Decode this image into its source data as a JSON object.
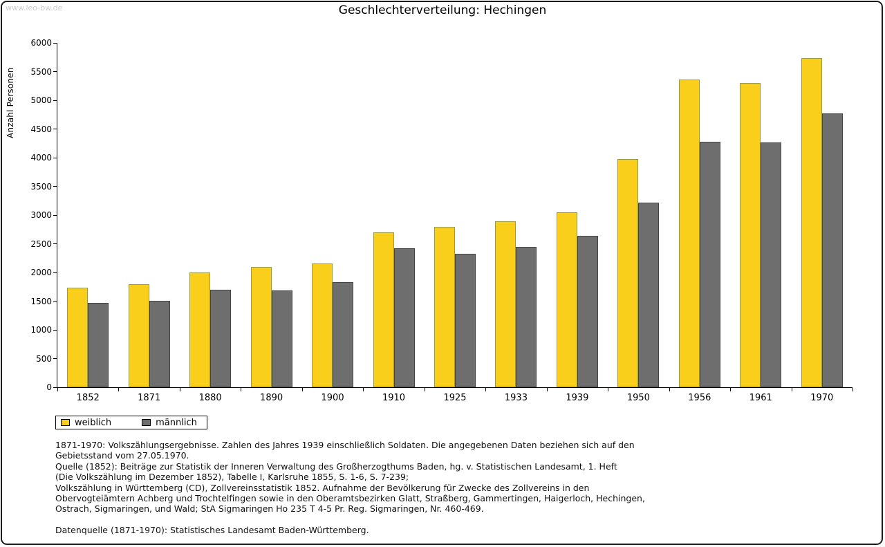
{
  "page": {
    "watermark": "www.leo-bw.de"
  },
  "chart_data": {
    "type": "bar",
    "title": "Geschlechterverteilung: Hechingen",
    "xlabel": "",
    "ylabel": "Anzahl Personen",
    "ylim": [
      0,
      6000
    ],
    "ytick_step": 500,
    "grid": false,
    "legend_position": "bottom-left",
    "categories": [
      "1852",
      "1871",
      "1880",
      "1890",
      "1900",
      "1910",
      "1925",
      "1933",
      "1939",
      "1950",
      "1956",
      "1961",
      "1970"
    ],
    "series": [
      {
        "name": "weiblich",
        "color": "#F9CF1B",
        "border": "#9a9a42",
        "values": [
          1730,
          1800,
          2000,
          2100,
          2160,
          2700,
          2800,
          2890,
          3050,
          3970,
          5360,
          5300,
          5740
        ]
      },
      {
        "name": "männlich",
        "color": "#6E6E6E",
        "border": "#454545",
        "values": [
          1470,
          1500,
          1700,
          1690,
          1830,
          2420,
          2320,
          2450,
          2640,
          3220,
          4280,
          4270,
          4770
        ]
      }
    ]
  },
  "notes": {
    "lines": [
      "1871-1970: Volkszählungsergebnisse. Zahlen des Jahres 1939 einschließlich Soldaten. Die angegebenen Daten beziehen sich auf den",
      "Gebietsstand vom 27.05.1970.",
      "Quelle (1852): Beiträge zur Statistik der Inneren Verwaltung des Großherzogthums Baden, hg. v. Statistischen Landesamt, 1. Heft",
      "(Die Volkszählung im Dezember 1852), Tabelle I, Karlsruhe 1855, S. 1-6, S. 7-239;",
      "Volkszählung in Württemberg (CD), Zollvereinsstatistik 1852. Aufnahme der Bevölkerung für Zwecke des Zollvereins in den",
      "Obervogteiämtern Achberg und Trochtelfingen sowie in den Oberamtsbezirken Glatt, Straßberg, Gammertingen, Haigerloch, Hechingen,",
      "Ostrach, Sigmaringen, und Wald; StA Sigmaringen Ho 235 T 4-5 Pr. Reg. Sigmaringen, Nr. 460-469."
    ],
    "datasource": "Datenquelle (1871-1970): Statistisches Landesamt Baden-Württemberg."
  }
}
